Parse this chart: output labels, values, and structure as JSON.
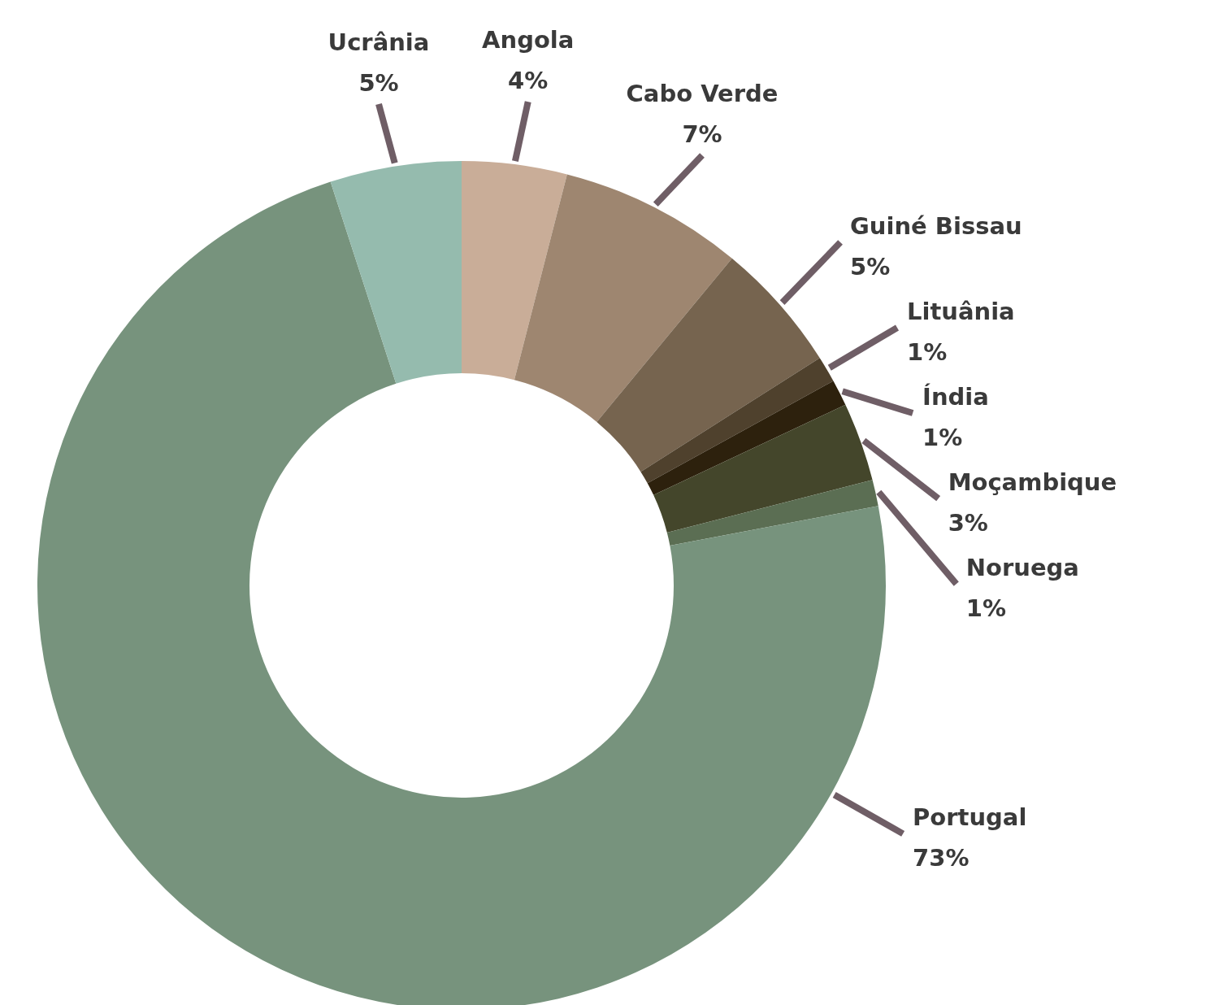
{
  "chart_data": {
    "type": "donut",
    "categories": [
      "Angola",
      "Cabo Verde",
      "Guiné Bissau",
      "Lituânia",
      "Índia",
      "Moçambique",
      "Noruega",
      "Portugal",
      "Ucrânia"
    ],
    "values": [
      4,
      7,
      5,
      1,
      1,
      3,
      1,
      73,
      5
    ],
    "value_labels": [
      "4%",
      "7%",
      "5%",
      "1%",
      "1%",
      "3%",
      "1%",
      "73%",
      "5%"
    ],
    "colors": [
      "#c9ad98",
      "#9e8670",
      "#76644f",
      "#4f412d",
      "#2d210d",
      "#44462b",
      "#5b6e53",
      "#77937d",
      "#95bbae"
    ]
  }
}
